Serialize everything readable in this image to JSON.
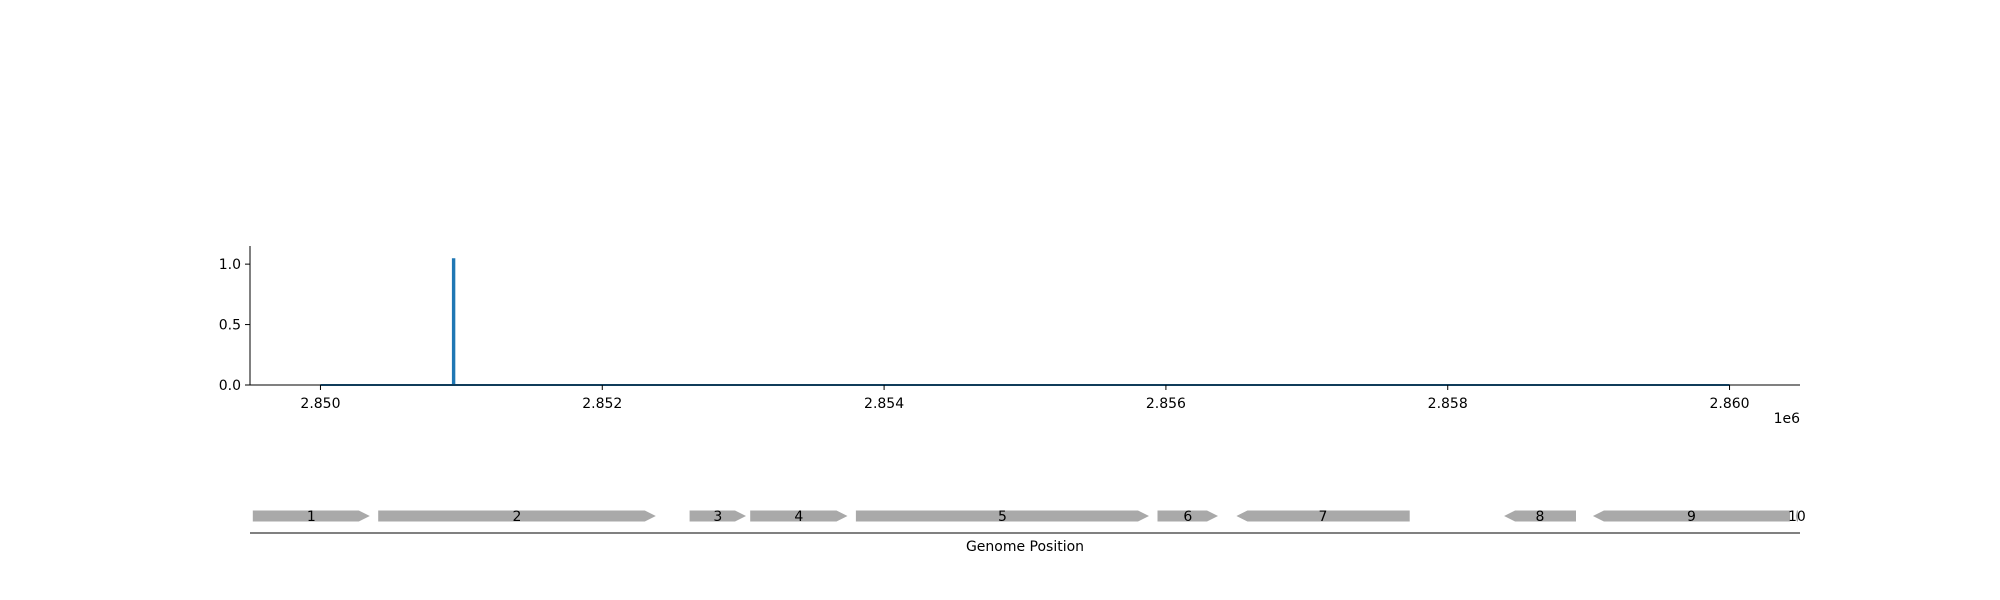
{
  "chart_data": [
    {
      "type": "line",
      "title": "",
      "xlabel": "",
      "ylabel": "",
      "x_offset_label": "1e6",
      "xlim": [
        2849500,
        2860500
      ],
      "ylim": [
        0,
        1.15
      ],
      "xticks": [
        2850000,
        2852000,
        2854000,
        2856000,
        2858000,
        2860000
      ],
      "xtick_labels": [
        "2.850",
        "2.852",
        "2.854",
        "2.856",
        "2.858",
        "2.860"
      ],
      "yticks": [
        0.0,
        0.5,
        1.0
      ],
      "ytick_labels": [
        "0.0",
        "0.5",
        "1.0"
      ],
      "grid": false,
      "series": [
        {
          "color": "#1f77b4",
          "x": [
            2850000,
            2850940,
            2850940,
            2850950,
            2850950,
            2860000
          ],
          "y": [
            0,
            0,
            1.04,
            1.04,
            0,
            0
          ]
        }
      ]
    },
    {
      "type": "gene-track",
      "xlabel": "Genome Position",
      "gene_color": "#a9a9a9",
      "genes": [
        {
          "label": "1",
          "start": 2849520,
          "end": 2850350,
          "strand": "+"
        },
        {
          "label": "2",
          "start": 2850410,
          "end": 2852380,
          "strand": "+"
        },
        {
          "label": "3",
          "start": 2852620,
          "end": 2853020,
          "strand": "+"
        },
        {
          "label": "4",
          "start": 2853050,
          "end": 2853740,
          "strand": "+"
        },
        {
          "label": "5",
          "start": 2853800,
          "end": 2855880,
          "strand": "+"
        },
        {
          "label": "6",
          "start": 2855940,
          "end": 2856370,
          "strand": "+"
        },
        {
          "label": "7",
          "start": 2856500,
          "end": 2857730,
          "strand": "-"
        },
        {
          "label": "8",
          "start": 2858400,
          "end": 2858910,
          "strand": "-"
        },
        {
          "label": "9",
          "start": 2859030,
          "end": 2860430,
          "strand": "-"
        },
        {
          "label": "10",
          "start": 2860470,
          "end": 2860950,
          "strand": "-"
        }
      ]
    }
  ]
}
